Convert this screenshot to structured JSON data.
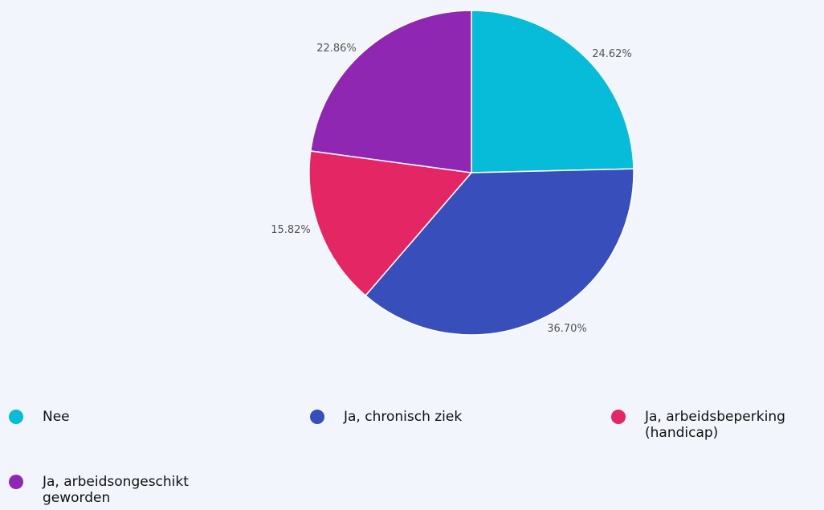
{
  "chart_data": {
    "type": "pie",
    "title": "",
    "legend_position": "bottom",
    "slices": [
      {
        "label": "Nee",
        "value": 24.62,
        "value_label": "24.62%",
        "color": "#06bcd8"
      },
      {
        "label": "Ja, chronisch ziek",
        "value": 36.7,
        "value_label": "36.70%",
        "color": "#384ebb"
      },
      {
        "label": "Ja, arbeidsbeperking\n(handicap)",
        "value": 15.82,
        "value_label": "15.82%",
        "color": "#e52664"
      },
      {
        "label": "Ja, arbeidsongeschikt\ngeworden",
        "value": 22.86,
        "value_label": "22.86%",
        "color": "#9027b2"
      }
    ]
  }
}
